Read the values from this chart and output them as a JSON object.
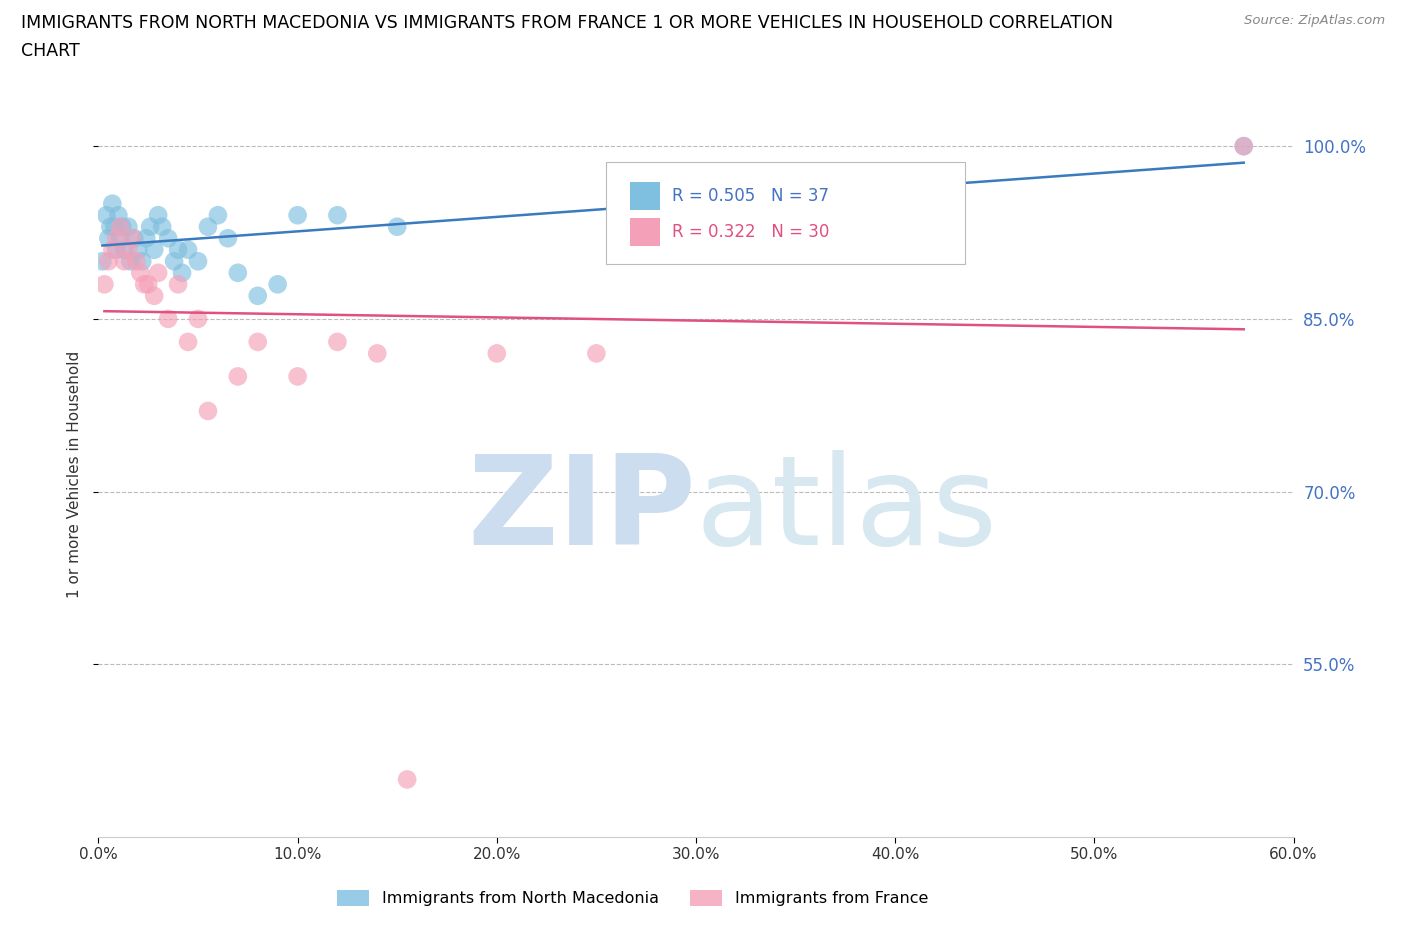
{
  "title_line1": "IMMIGRANTS FROM NORTH MACEDONIA VS IMMIGRANTS FROM FRANCE 1 OR MORE VEHICLES IN HOUSEHOLD CORRELATION",
  "title_line2": "CHART",
  "source": "Source: ZipAtlas.com",
  "ylabel": "1 or more Vehicles in Household",
  "xlim": [
    0.0,
    60.0
  ],
  "ylim": [
    40.0,
    103.0
  ],
  "yticks": [
    55.0,
    70.0,
    85.0,
    100.0
  ],
  "xticks": [
    0.0,
    10.0,
    20.0,
    30.0,
    40.0,
    50.0,
    60.0
  ],
  "blue_color": "#7fbfdf",
  "pink_color": "#f4a0b8",
  "blue_line_color": "#3a7abf",
  "pink_line_color": "#e05080",
  "R_blue": 0.505,
  "N_blue": 37,
  "R_pink": 0.322,
  "N_pink": 30,
  "watermark_zip": "ZIP",
  "watermark_atlas": "atlas",
  "watermark_color": "#ccddf0",
  "legend_label_blue": "Immigrants from North Macedonia",
  "legend_label_pink": "Immigrants from France",
  "blue_dots_x": [
    0.2,
    0.4,
    0.5,
    0.6,
    0.7,
    0.8,
    0.9,
    1.0,
    1.1,
    1.2,
    1.3,
    1.5,
    1.6,
    1.8,
    2.0,
    2.2,
    2.4,
    2.6,
    2.8,
    3.0,
    3.2,
    3.5,
    3.8,
    4.0,
    4.2,
    4.5,
    5.0,
    5.5,
    6.0,
    6.5,
    7.0,
    8.0,
    9.0,
    10.0,
    12.0,
    15.0,
    57.5
  ],
  "blue_dots_y": [
    90,
    94,
    92,
    93,
    95,
    93,
    91,
    94,
    92,
    93,
    91,
    93,
    90,
    92,
    91,
    90,
    92,
    93,
    91,
    94,
    93,
    92,
    90,
    91,
    89,
    91,
    90,
    93,
    94,
    92,
    89,
    87,
    88,
    94,
    94,
    93,
    100
  ],
  "pink_dots_x": [
    0.3,
    0.5,
    0.7,
    0.9,
    1.1,
    1.3,
    1.5,
    1.7,
    1.9,
    2.1,
    2.3,
    2.5,
    2.8,
    3.0,
    3.5,
    4.0,
    4.5,
    5.0,
    5.5,
    7.0,
    8.0,
    10.0,
    12.0,
    14.0,
    15.5,
    20.0,
    25.0,
    57.5
  ],
  "pink_dots_y": [
    88,
    90,
    91,
    92,
    93,
    90,
    91,
    92,
    90,
    89,
    88,
    88,
    87,
    89,
    85,
    88,
    83,
    85,
    77,
    80,
    83,
    80,
    83,
    82,
    45,
    82,
    82,
    100
  ]
}
